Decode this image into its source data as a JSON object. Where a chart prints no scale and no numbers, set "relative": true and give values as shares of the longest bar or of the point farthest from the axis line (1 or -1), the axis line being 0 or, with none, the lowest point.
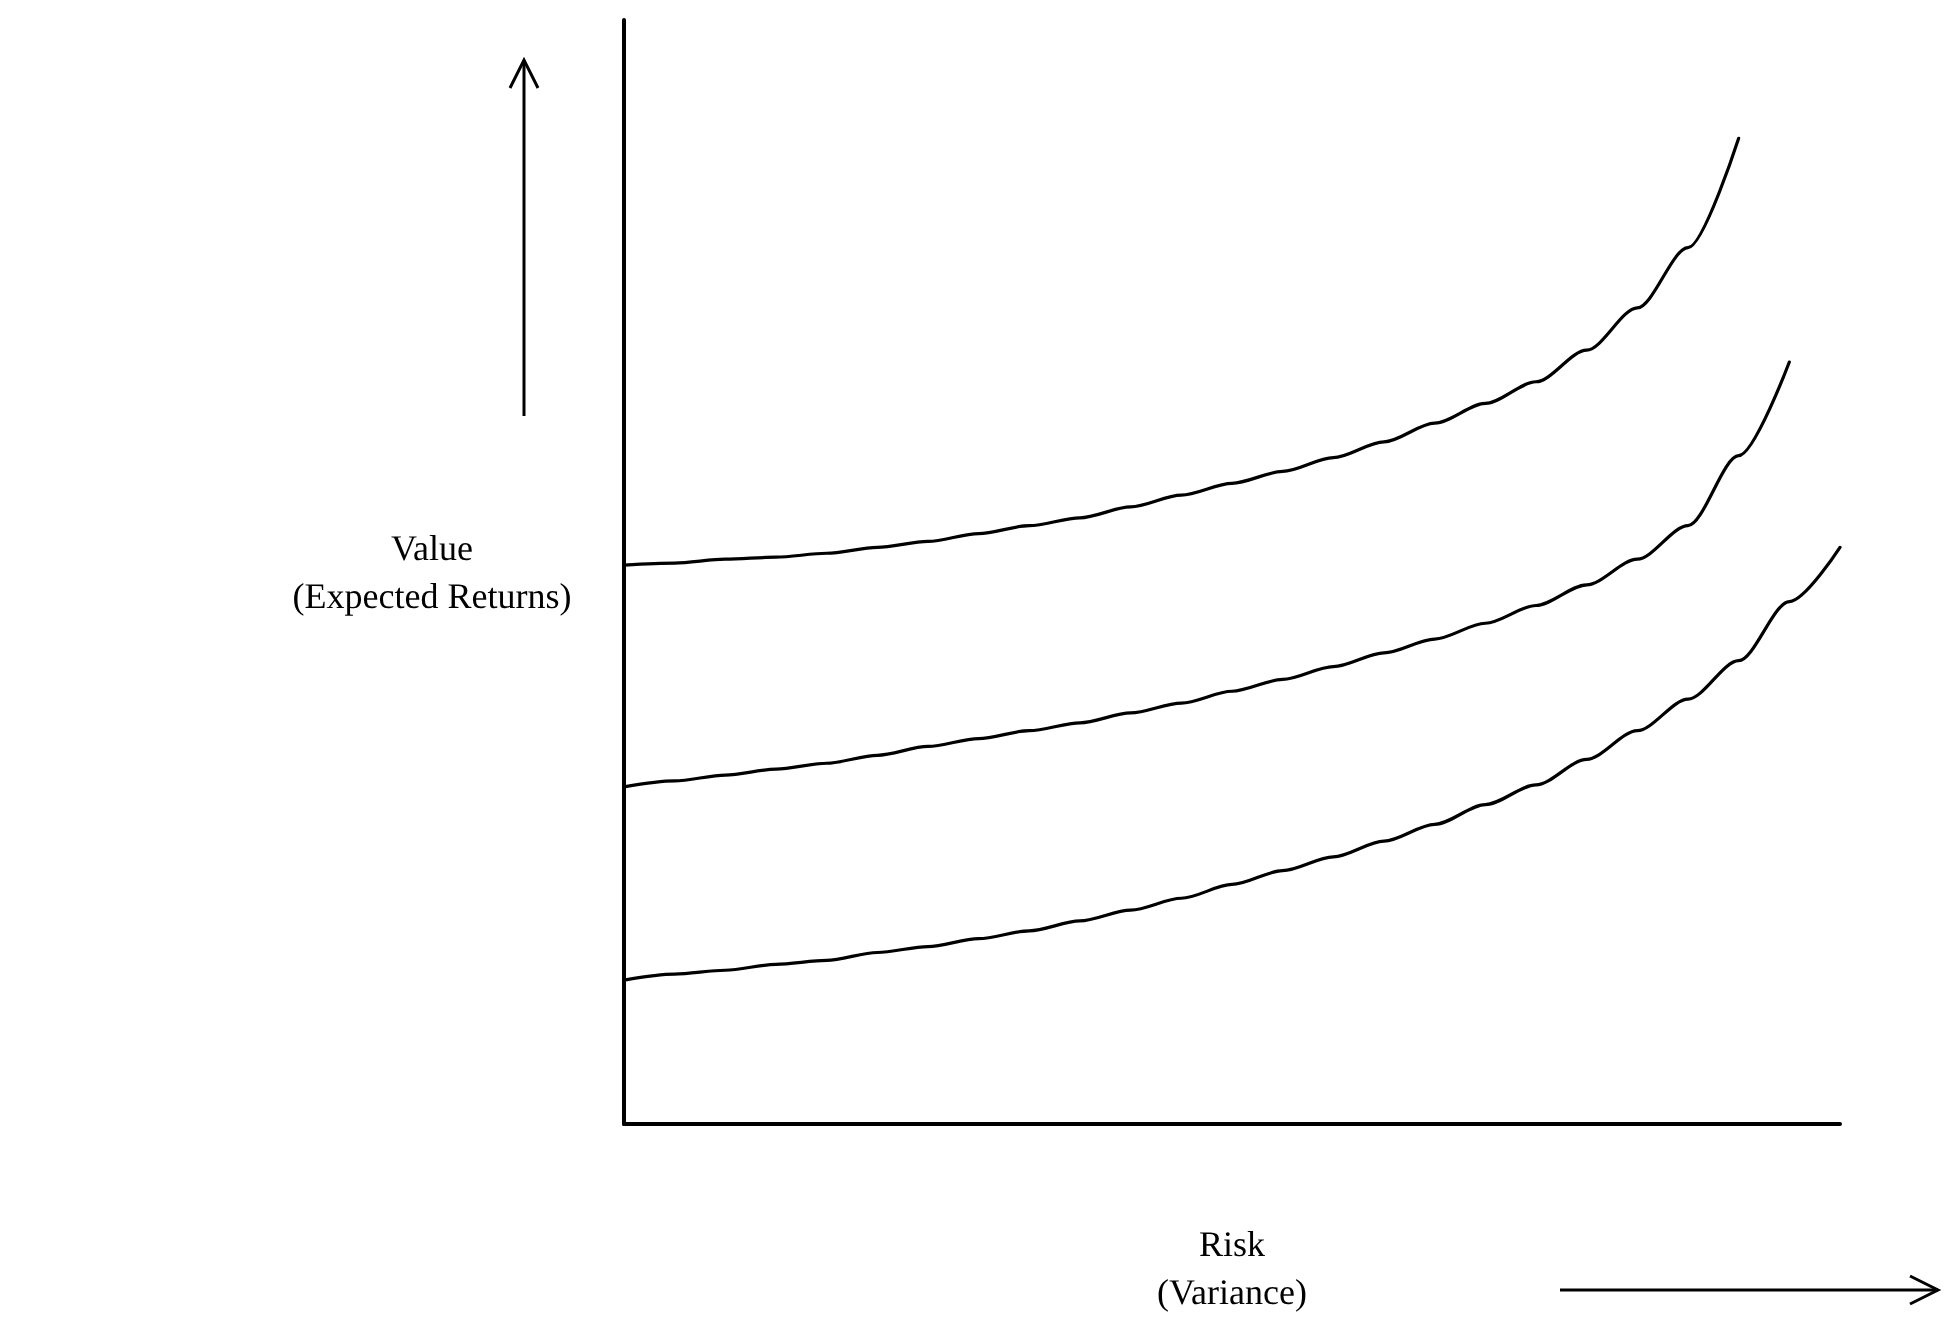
{
  "chart_data": {
    "type": "line",
    "relative": true,
    "xlabel": "Risk\n(Variance)",
    "ylabel": "Value\n(Expected Returns)",
    "grid": false,
    "marker": "none",
    "line_style": "solid",
    "categories": [
      null,
      null,
      null,
      null,
      null,
      null,
      null,
      null,
      null,
      null,
      null,
      null,
      null,
      null,
      null,
      null,
      null,
      null,
      null,
      null,
      null,
      null,
      null,
      null,
      null
    ],
    "series": [
      {
        "color": "#000000",
        "values": [
          0.567,
          0.569,
          0.573,
          0.575,
          0.579,
          0.585,
          0.591,
          0.599,
          0.607,
          0.615,
          0.626,
          0.638,
          0.65,
          0.662,
          0.676,
          0.692,
          0.711,
          0.731,
          0.753,
          0.785,
          0.828,
          0.889,
          1,
          null,
          null
        ]
      },
      {
        "color": "#000000",
        "values": [
          0.342,
          0.348,
          0.354,
          0.36,
          0.366,
          0.374,
          0.383,
          0.391,
          0.399,
          0.407,
          0.417,
          0.427,
          0.439,
          0.451,
          0.464,
          0.478,
          0.492,
          0.508,
          0.526,
          0.547,
          0.573,
          0.607,
          0.678,
          0.773,
          null
        ]
      },
      {
        "color": "#000000",
        "values": [
          0.146,
          0.152,
          0.156,
          0.162,
          0.166,
          0.174,
          0.18,
          0.188,
          0.196,
          0.206,
          0.217,
          0.229,
          0.243,
          0.257,
          0.271,
          0.287,
          0.304,
          0.324,
          0.344,
          0.37,
          0.399,
          0.431,
          0.47,
          0.53,
          0.585
        ]
      }
    ]
  }
}
